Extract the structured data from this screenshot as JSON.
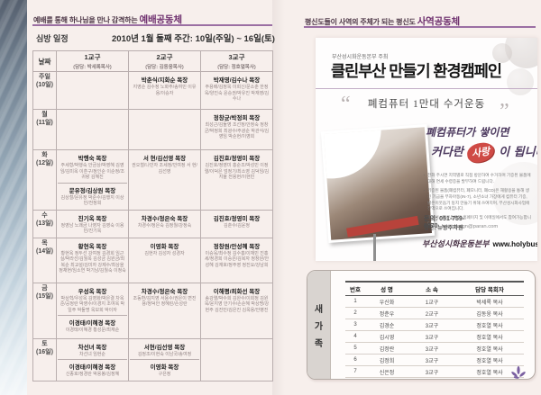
{
  "left_page": {
    "header": {
      "prefix": "예배를 통해 하나님을 만나 감격하는 ",
      "emphasis": "예배공동체"
    },
    "schedule": {
      "title": "심방 일정",
      "week": "2010년 1월 둘째 주간: 10일(주일) ~ 16일(토)",
      "columns": [
        {
          "name": "날짜",
          "pastor": ""
        },
        {
          "name": "1교구",
          "pastor": "(담당: 박세록목사)"
        },
        {
          "name": "2교구",
          "pastor": "(담당: 김동웅목사)"
        },
        {
          "name": "3교구",
          "pastor": "(담당: 정호열목사)"
        }
      ],
      "rows": [
        {
          "day": "주일",
          "date": "(10일)",
          "cells": [
            [],
            [
              {
                "leader": "박춘식/지화순 목장",
                "members": "지영순 김수정 노화주/송여민 이유용/이승자"
              }
            ],
            [
              {
                "leader": "박재영/김수나 목장",
                "members": "주용배/김정옥 이희신/문소춘 한정욱/양진숙 윤승권/박유진 박재영/김수나"
              }
            ]
          ]
        },
        {
          "day": "월",
          "date": "(11일)",
          "cells": [
            [],
            [],
            [
              {
                "leader": "정창균/박정희 목장",
                "members": "최성근/김둘영 조선정/안정숙 정창균/박정희 최광수/주광순 박관식/김영임 박순현/이영희"
              }
            ]
          ]
        },
        {
          "day": "화",
          "date": "(12일)",
          "cells": [
            [
              {
                "leader": "박행숙 목장",
                "members": "주세형/박행숙 안금상/박영혜 김영임/김미옥 이훈구/정인순 이순정/조귀랑 김혜진"
              },
              {
                "leader": "문유정/김상원 목장",
                "members": "김상철/문유정 박준수/김행지 이상민/전정희"
              }
            ],
            [
              {
                "leader": "서 현/김선영 목장",
                "members": "권오철/나민자 조세정/민여정 서 현/김선영"
              }
            ],
            [
              {
                "leader": "김진호/정영미 목장",
                "members": "김진호/정영미 홍순조/박성민 이정렬/이덕은 엄정기/최소영 김덕임/김지율 전용현/이현빈"
              }
            ]
          ]
        },
        {
          "day": "수",
          "date": "(13일)",
          "cells": [
            [
              {
                "leader": "진기옥 목장",
                "members": "정영남 노쾌금 나영자 김영숙 이용빈/진기옥"
              }
            ],
            [
              {
                "leader": "차경수/정은숙 목장",
                "members": "차경수/정은숙 김정월/강정숙"
              }
            ],
            [
              {
                "leader": "김진호/정영미 목장",
                "members": "김춘수/김윤정"
              }
            ]
          ]
        },
        {
          "day": "목",
          "date": "(14일)",
          "cells": [
            [
              {
                "leader": "황현옥 목장",
                "members": "황현옥 정두선 강여정 김경희 임근실/박라선/김월옥 김성금 김원금/최복순 최교설/김미자 강제수/최상을 정채현/임소연 박기남/김월숙 이정숙"
              }
            ],
            [
              {
                "leader": "이영화 목장",
                "members": "김현자 김성자 성경자"
              }
            ],
            [
              {
                "leader": "정창원/안성혜 목장",
                "members": "이승욱/최수정 김수홍/이재민 진홍세/정경희 이승은/김복자 정창원/안성혜 김재호/정주영 정진요/강남희"
              }
            ]
          ]
        },
        {
          "day": "금",
          "date": "(15일)",
          "cells": [
            [
              {
                "leader": "우성옥 목장",
                "members": "박상혁/우성옥 김영화/박은결 차옥준/공정란 박영수/이경지 조여옥 박일주 박둘명 옥보희 박이자"
              },
              {
                "leader": "이경태/이혜경 목장",
                "members": "이경태/이혜경 황성문/최재순"
              }
            ],
            [
              {
                "leader": "차경수/정은숙 목장",
                "members": "조동환/김지영 서용수/권은이 변진용/정덕안 정혜린/손성란"
              }
            ],
            [
              {
                "leader": "이해평/최화선 목장",
                "members": "송강열/박수희 김완수/이희정 김원욱/윤지영 안기수/손순혜 박상명/강현주 김진민/김은진 김옥용/안병진"
              }
            ]
          ]
        },
        {
          "day": "토",
          "date": "(16일)",
          "cells": [
            [
              {
                "leader": "차선녀 목장",
                "members": "차선녀 임현순"
              },
              {
                "leader": "이경태/이혜경 목장",
                "members": "신종호/정경란 박용봉/김정혜"
              }
            ],
            [
              {
                "leader": "서현/김선영 목장",
                "members": "김정조/이현숙 이남국/송여정"
              },
              {
                "leader": "이영화 목장",
                "members": "구은정"
              }
            ],
            []
          ]
        }
      ]
    }
  },
  "right_page": {
    "header": {
      "prefix": "평신도들이 사역의 주체가 되는 평신도 ",
      "emphasis": "사역공동체"
    },
    "campaign": {
      "host": "부산성시화운동본부 주최",
      "title": "클린부산 만들기 환경캠페인",
      "subtitle": "폐컴퓨터 1만대 수거운동",
      "quote_open": "“",
      "quote_close": "”",
      "slogan_line1": "폐컴퓨터가 쌓이면",
      "slogan_pre": "커다란 ",
      "slogan_heart": "사랑",
      "slogan_post": " 이 됩니다!",
      "bullets": [
        "전화 주시면 지역별로 직접 방문하여 수거하며 기증된 물품에 대해 면세 수령증을 발부하여 드립니다.",
        "기증된 물품(폐컴퓨터, 폐모니터, 폐CD)은 재활용을 통해 생긴 기금을 부자아동(IN-7), 소년소녀 가장에게 컴퓨터 기증, 밝은이웃돕기 둥지 만들기 위해 쓰여지며, 부산성시화사업에 전액으로 쓰여집니다.",
        "부산성시화운동본부 홈페이지 및 이메일에서도 참여가능합니다."
      ],
      "contact": "문의: 051-759-0870",
      "email": "hesydesign@paran.com",
      "sponsor": "협찬: 뉴방주자원",
      "signature": "부산성시화운동본부",
      "website": "www.holybusan.org"
    },
    "new_family": {
      "label": "새가족",
      "columns": [
        "번호",
        "성 명",
        "소 속",
        "담당 목회자"
      ],
      "rows": [
        [
          "1",
          "우신화",
          "1교구",
          "박세록 목사"
        ],
        [
          "2",
          "정춘우",
          "2교구",
          "김동웅 목사"
        ],
        [
          "3",
          "김경순",
          "3교구",
          "정호열 목사"
        ],
        [
          "4",
          "김시영",
          "3교구",
          "정호열 목사"
        ],
        [
          "5",
          "김정란",
          "3교구",
          "정호열 목사"
        ],
        [
          "6",
          "김정희",
          "3교구",
          "정호열 목사"
        ],
        [
          "7",
          "신은정",
          "3교구",
          "정호열 목사"
        ],
        [
          "8",
          "황태용",
          "3교구",
          "정호열 목사"
        ]
      ]
    }
  },
  "colors": {
    "accent_purple": "#9b6fa3",
    "emphasis_purple": "#6d2e6d",
    "heart_red": "#cf4a45"
  }
}
